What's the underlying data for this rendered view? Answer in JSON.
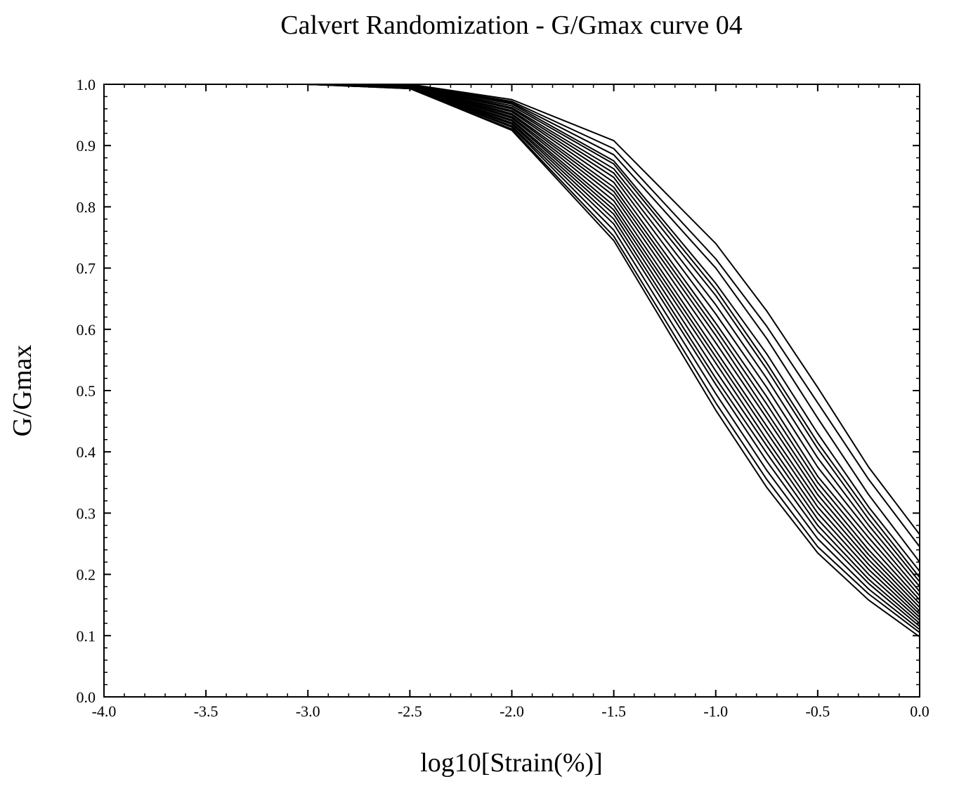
{
  "chart_data": {
    "type": "line",
    "title": "Calvert Randomization - G/Gmax curve 04",
    "xlabel": "log10[Strain(%)]",
    "ylabel": "G/Gmax",
    "xlim": [
      -4.0,
      0.0
    ],
    "ylim": [
      0.0,
      1.0
    ],
    "x_ticks": [
      "-4.0",
      "-3.5",
      "-3.0",
      "-2.5",
      "-2.0",
      "-1.5",
      "-1.0",
      "-0.5",
      "0.0"
    ],
    "y_ticks": [
      "0.0",
      "0.1",
      "0.2",
      "0.3",
      "0.4",
      "0.5",
      "0.6",
      "0.7",
      "0.8",
      "0.9",
      "1.0"
    ],
    "grid": false,
    "legend": "none",
    "line_color": "#000000",
    "x": [
      -3.0,
      -2.5,
      -2.0,
      -1.5,
      -1.0,
      -0.75,
      -0.5,
      -0.25,
      0.0
    ],
    "series": [
      {
        "values": [
          1.0,
          1.0,
          0.975,
          0.908,
          0.74,
          0.63,
          0.505,
          0.375,
          0.265
        ]
      },
      {
        "values": [
          1.0,
          1.0,
          0.972,
          0.895,
          0.715,
          0.605,
          0.48,
          0.355,
          0.245
        ]
      },
      {
        "values": [
          1.0,
          0.999,
          0.97,
          0.885,
          0.7,
          0.585,
          0.455,
          0.33,
          0.22
        ]
      },
      {
        "values": [
          1.0,
          0.999,
          0.968,
          0.875,
          0.675,
          0.56,
          0.43,
          0.31,
          0.205
        ]
      },
      {
        "values": [
          1.0,
          0.998,
          0.965,
          0.87,
          0.665,
          0.545,
          0.415,
          0.3,
          0.195
        ]
      },
      {
        "values": [
          1.0,
          0.998,
          0.962,
          0.862,
          0.655,
          0.535,
          0.405,
          0.29,
          0.188
        ]
      },
      {
        "values": [
          1.0,
          0.998,
          0.96,
          0.855,
          0.64,
          0.52,
          0.39,
          0.28,
          0.18
        ]
      },
      {
        "values": [
          1.0,
          0.997,
          0.957,
          0.848,
          0.625,
          0.505,
          0.375,
          0.27,
          0.172
        ]
      },
      {
        "values": [
          1.0,
          0.997,
          0.955,
          0.84,
          0.61,
          0.49,
          0.36,
          0.26,
          0.165
        ]
      },
      {
        "values": [
          1.0,
          0.997,
          0.952,
          0.832,
          0.6,
          0.478,
          0.35,
          0.25,
          0.158
        ]
      },
      {
        "values": [
          1.0,
          0.996,
          0.95,
          0.825,
          0.59,
          0.465,
          0.34,
          0.24,
          0.152
        ]
      },
      {
        "values": [
          1.0,
          0.996,
          0.947,
          0.818,
          0.578,
          0.455,
          0.33,
          0.232,
          0.146
        ]
      },
      {
        "values": [
          1.0,
          0.996,
          0.945,
          0.81,
          0.565,
          0.442,
          0.32,
          0.224,
          0.14
        ]
      },
      {
        "values": [
          1.0,
          0.995,
          0.942,
          0.802,
          0.555,
          0.432,
          0.31,
          0.216,
          0.135
        ]
      },
      {
        "values": [
          1.0,
          0.995,
          0.94,
          0.795,
          0.545,
          0.42,
          0.3,
          0.208,
          0.13
        ]
      },
      {
        "values": [
          1.0,
          0.995,
          0.937,
          0.788,
          0.532,
          0.41,
          0.29,
          0.2,
          0.125
        ]
      },
      {
        "values": [
          1.0,
          0.994,
          0.935,
          0.78,
          0.52,
          0.398,
          0.28,
          0.192,
          0.12
        ]
      },
      {
        "values": [
          1.0,
          0.994,
          0.932,
          0.772,
          0.51,
          0.385,
          0.27,
          0.185,
          0.115
        ]
      },
      {
        "values": [
          1.0,
          0.994,
          0.93,
          0.762,
          0.495,
          0.37,
          0.258,
          0.176,
          0.11
        ]
      },
      {
        "values": [
          1.0,
          0.993,
          0.927,
          0.752,
          0.48,
          0.355,
          0.245,
          0.168,
          0.105
        ]
      },
      {
        "values": [
          1.0,
          0.993,
          0.925,
          0.745,
          0.468,
          0.342,
          0.235,
          0.158,
          0.098
        ]
      }
    ]
  }
}
